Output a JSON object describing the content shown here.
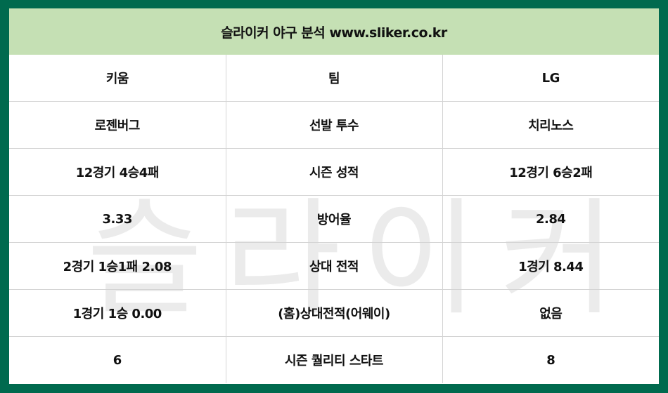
{
  "title": "슬라이커 야구 분석 www.sliker.co.kr",
  "watermark": "슬라이커",
  "colors": {
    "border": "#006a4e",
    "header_bg": "#c5e0b4"
  },
  "rows": [
    {
      "left": "키움",
      "label": "팀",
      "right": "LG"
    },
    {
      "left": "로젠버그",
      "label": "선발 투수",
      "right": "치리노스"
    },
    {
      "left": "12경기 4승4패",
      "label": "시즌 성적",
      "right": "12경기 6승2패"
    },
    {
      "left": "3.33",
      "label": "방어율",
      "right": "2.84"
    },
    {
      "left": "2경기 1승1패 2.08",
      "label": "상대 전적",
      "right": "1경기 8.44"
    },
    {
      "left": "1경기 1승 0.00",
      "label": "(홈)상대전적(어웨이)",
      "right": "없음"
    },
    {
      "left": "6",
      "label": "시즌 퀄리티 스타트",
      "right": "8"
    }
  ]
}
